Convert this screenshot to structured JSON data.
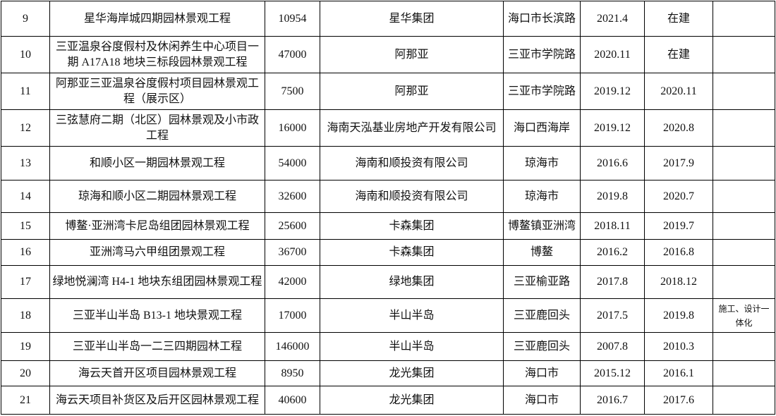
{
  "table": {
    "rows": [
      [
        "9",
        "星华海岸城四期园林景观工程",
        "10954",
        "星华集团",
        "海口市长滨路",
        "2021.4",
        "在建"
      ],
      [
        "10",
        "三亚温泉谷度假村及休闲养生中心项目一期 A17A18 地块三标段园林景观工程",
        "47000",
        "阿那亚",
        "三亚市学院路",
        "2020.11",
        "在建"
      ],
      [
        "11",
        "阿那亚三亚温泉谷度假村项目园林景观工程（展示区）",
        "7500",
        "阿那亚",
        "三亚市学院路",
        "2019.12",
        "2020.11"
      ],
      [
        "12",
        "三弦慧府二期（北区）园林景观及小市政工程",
        "16000",
        "海南天泓基业房地产开发有限公司",
        "海口西海岸",
        "2019.12",
        "2020.8"
      ],
      [
        "13",
        "和顺小区一期园林景观工程",
        "54000",
        "海南和顺投资有限公司",
        "琼海市",
        "2016.6",
        "2017.9"
      ],
      [
        "14",
        "琼海和顺小区二期园林景观工程",
        "32600",
        "海南和顺投资有限公司",
        "琼海市",
        "2019.8",
        "2020.7"
      ],
      [
        "15",
        "博鳌·亚洲湾卡尼岛组团园林景观工程",
        "25600",
        "卡森集团",
        "博鳌镇亚洲湾",
        "2018.11",
        "2019.7"
      ],
      [
        "16",
        "亚洲湾马六甲组团景观工程",
        "36700",
        "卡森集团",
        "博鳌",
        "2016.2",
        "2016.8"
      ],
      [
        "17",
        "绿地悦澜湾 H4-1 地块东组团园林景观工程",
        "42000",
        "绿地集团",
        "三亚榆亚路",
        "2017.8",
        "2018.12"
      ],
      [
        "18",
        "三亚半山半岛 B13-1 地块景观工程",
        "17000",
        "半山半岛",
        "三亚鹿回头",
        "2017.5",
        "2019.8",
        "施工、设计一体化"
      ],
      [
        "19",
        "三亚半山半岛一二三四期园林工程",
        "146000",
        "半山半岛",
        "三亚鹿回头",
        "2007.8",
        "2010.3"
      ],
      [
        "20",
        "海云天首开区项目园林景观工程",
        "8950",
        "龙光集团",
        "海口市",
        "2015.12",
        "2016.1"
      ],
      [
        "21",
        "海云天项目补货区及后开区园林景观工程",
        "40600",
        "龙光集团",
        "海口市",
        "2016.7",
        "2017.6"
      ]
    ]
  }
}
